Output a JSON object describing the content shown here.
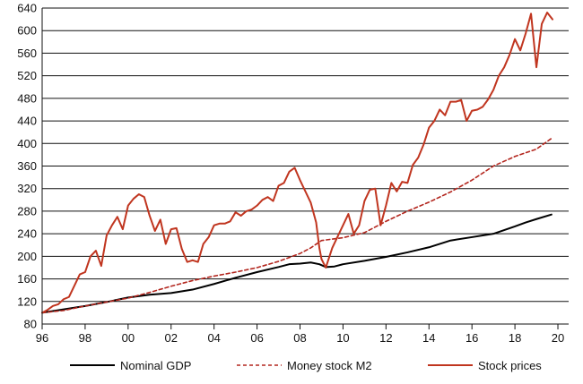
{
  "chart_data": {
    "type": "line",
    "title": "",
    "xlabel": "",
    "ylabel": "",
    "xlim": [
      1996,
      2020.5
    ],
    "ylim": [
      80,
      640
    ],
    "grid": "horizontal",
    "legend_position": "bottom",
    "x_ticks": [
      {
        "value": 1996,
        "label": "96"
      },
      {
        "value": 1998,
        "label": "98"
      },
      {
        "value": 2000,
        "label": "00"
      },
      {
        "value": 2002,
        "label": "02"
      },
      {
        "value": 2004,
        "label": "04"
      },
      {
        "value": 2006,
        "label": "06"
      },
      {
        "value": 2008,
        "label": "08"
      },
      {
        "value": 2010,
        "label": "10"
      },
      {
        "value": 2012,
        "label": "12"
      },
      {
        "value": 2014,
        "label": "14"
      },
      {
        "value": 2016,
        "label": "16"
      },
      {
        "value": 2018,
        "label": "18"
      },
      {
        "value": 2020,
        "label": "20"
      }
    ],
    "y_ticks": [
      80,
      120,
      160,
      200,
      240,
      280,
      320,
      360,
      400,
      440,
      480,
      520,
      560,
      600,
      640
    ],
    "series": [
      {
        "name": "Nominal GDP",
        "color": "#000000",
        "style": "solid",
        "points": [
          [
            1996.0,
            100
          ],
          [
            1997.0,
            106
          ],
          [
            1998.0,
            112
          ],
          [
            1999.0,
            119
          ],
          [
            2000.0,
            127
          ],
          [
            2001.0,
            132
          ],
          [
            2002.0,
            135
          ],
          [
            2003.0,
            141
          ],
          [
            2004.0,
            151
          ],
          [
            2005.0,
            162
          ],
          [
            2006.0,
            172
          ],
          [
            2007.0,
            181
          ],
          [
            2007.5,
            186
          ],
          [
            2008.0,
            187
          ],
          [
            2008.5,
            189
          ],
          [
            2008.9,
            186
          ],
          [
            2009.2,
            181
          ],
          [
            2009.6,
            182
          ],
          [
            2010.0,
            186
          ],
          [
            2011.0,
            192
          ],
          [
            2012.0,
            199
          ],
          [
            2013.0,
            207
          ],
          [
            2014.0,
            216
          ],
          [
            2015.0,
            228
          ],
          [
            2016.0,
            234
          ],
          [
            2017.0,
            240
          ],
          [
            2018.0,
            253
          ],
          [
            2018.5,
            260
          ],
          [
            2019.0,
            266
          ],
          [
            2019.7,
            274
          ]
        ]
      },
      {
        "name": "Money stock M2",
        "color": "#b3261e",
        "style": "dashed",
        "points": [
          [
            1996.0,
            100
          ],
          [
            1997.0,
            104
          ],
          [
            1998.0,
            112
          ],
          [
            1999.0,
            119
          ],
          [
            2000.0,
            126
          ],
          [
            2001.0,
            136
          ],
          [
            2002.0,
            147
          ],
          [
            2003.0,
            157
          ],
          [
            2004.0,
            165
          ],
          [
            2005.0,
            172
          ],
          [
            2006.0,
            180
          ],
          [
            2007.0,
            191
          ],
          [
            2008.0,
            205
          ],
          [
            2008.5,
            215
          ],
          [
            2009.0,
            228
          ],
          [
            2010.0,
            233
          ],
          [
            2011.0,
            242
          ],
          [
            2012.0,
            262
          ],
          [
            2013.0,
            280
          ],
          [
            2014.0,
            296
          ],
          [
            2015.0,
            314
          ],
          [
            2016.0,
            335
          ],
          [
            2017.0,
            360
          ],
          [
            2018.0,
            377
          ],
          [
            2019.0,
            390
          ],
          [
            2019.7,
            409
          ]
        ]
      },
      {
        "name": "Stock prices",
        "color": "#c0351f",
        "style": "solid",
        "points": [
          [
            1996.0,
            100
          ],
          [
            1996.25,
            105
          ],
          [
            1996.5,
            112
          ],
          [
            1996.75,
            115
          ],
          [
            1997.0,
            124
          ],
          [
            1997.25,
            128
          ],
          [
            1997.5,
            148
          ],
          [
            1997.75,
            168
          ],
          [
            1998.0,
            172
          ],
          [
            1998.25,
            200
          ],
          [
            1998.5,
            210
          ],
          [
            1998.75,
            183
          ],
          [
            1999.0,
            237
          ],
          [
            1999.25,
            255
          ],
          [
            1999.5,
            270
          ],
          [
            1999.75,
            248
          ],
          [
            2000.0,
            290
          ],
          [
            2000.25,
            302
          ],
          [
            2000.5,
            310
          ],
          [
            2000.75,
            305
          ],
          [
            2001.0,
            272
          ],
          [
            2001.25,
            245
          ],
          [
            2001.5,
            265
          ],
          [
            2001.75,
            222
          ],
          [
            2002.0,
            248
          ],
          [
            2002.25,
            250
          ],
          [
            2002.5,
            213
          ],
          [
            2002.75,
            190
          ],
          [
            2003.0,
            193
          ],
          [
            2003.25,
            190
          ],
          [
            2003.5,
            222
          ],
          [
            2003.75,
            234
          ],
          [
            2004.0,
            255
          ],
          [
            2004.25,
            258
          ],
          [
            2004.5,
            258
          ],
          [
            2004.75,
            262
          ],
          [
            2005.0,
            278
          ],
          [
            2005.25,
            272
          ],
          [
            2005.5,
            280
          ],
          [
            2005.75,
            283
          ],
          [
            2006.0,
            290
          ],
          [
            2006.25,
            300
          ],
          [
            2006.5,
            305
          ],
          [
            2006.75,
            298
          ],
          [
            2007.0,
            325
          ],
          [
            2007.25,
            330
          ],
          [
            2007.5,
            350
          ],
          [
            2007.75,
            357
          ],
          [
            2008.0,
            335
          ],
          [
            2008.25,
            315
          ],
          [
            2008.5,
            295
          ],
          [
            2008.75,
            260
          ],
          [
            2008.9,
            215
          ],
          [
            2009.0,
            195
          ],
          [
            2009.2,
            180
          ],
          [
            2009.5,
            215
          ],
          [
            2009.75,
            235
          ],
          [
            2010.0,
            255
          ],
          [
            2010.25,
            275
          ],
          [
            2010.5,
            240
          ],
          [
            2010.75,
            255
          ],
          [
            2011.0,
            298
          ],
          [
            2011.25,
            318
          ],
          [
            2011.5,
            320
          ],
          [
            2011.75,
            255
          ],
          [
            2012.0,
            290
          ],
          [
            2012.25,
            330
          ],
          [
            2012.5,
            315
          ],
          [
            2012.75,
            332
          ],
          [
            2013.0,
            330
          ],
          [
            2013.25,
            362
          ],
          [
            2013.5,
            375
          ],
          [
            2013.75,
            398
          ],
          [
            2014.0,
            428
          ],
          [
            2014.25,
            440
          ],
          [
            2014.5,
            460
          ],
          [
            2014.75,
            450
          ],
          [
            2015.0,
            474
          ],
          [
            2015.25,
            474
          ],
          [
            2015.5,
            477
          ],
          [
            2015.75,
            440
          ],
          [
            2016.0,
            458
          ],
          [
            2016.25,
            460
          ],
          [
            2016.5,
            465
          ],
          [
            2016.75,
            478
          ],
          [
            2017.0,
            495
          ],
          [
            2017.25,
            520
          ],
          [
            2017.5,
            535
          ],
          [
            2017.75,
            557
          ],
          [
            2018.0,
            585
          ],
          [
            2018.25,
            565
          ],
          [
            2018.5,
            595
          ],
          [
            2018.75,
            630
          ],
          [
            2019.0,
            535
          ],
          [
            2019.25,
            612
          ],
          [
            2019.5,
            632
          ],
          [
            2019.75,
            620
          ]
        ]
      }
    ]
  }
}
